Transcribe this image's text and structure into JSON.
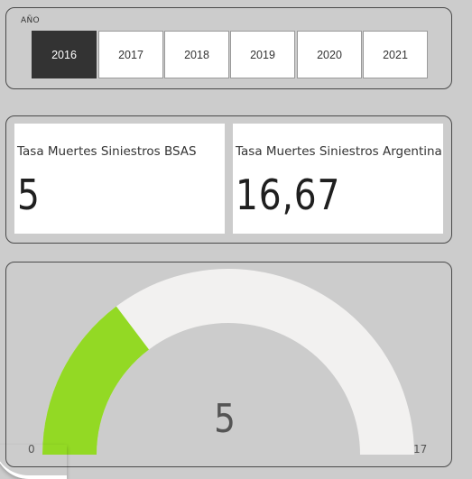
{
  "slicer": {
    "title": "AÑO",
    "years": [
      "2016",
      "2017",
      "2018",
      "2019",
      "2020",
      "2021"
    ],
    "selected": "2016"
  },
  "cards": [
    {
      "label": "Tasa Muertes Siniestros BSAS",
      "value": "5"
    },
    {
      "label": "Tasa Muertes Siniestros Argentina",
      "value": "16,67"
    }
  ],
  "gauge": {
    "min": "0",
    "max": "17",
    "value": "5",
    "value_num": 5,
    "min_num": 0,
    "max_num": 17,
    "fill_color": "#93d924",
    "track_color": "#f2f1f0"
  }
}
